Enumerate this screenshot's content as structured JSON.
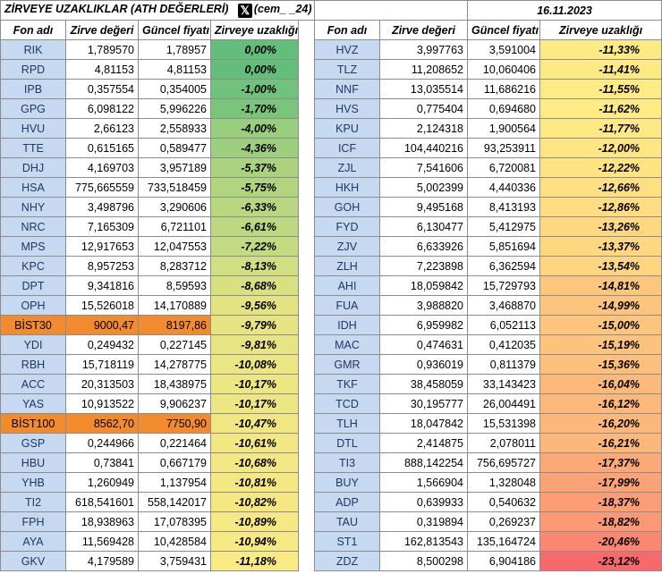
{
  "title": {
    "main": "ZİRVEYE UZAKLIKLAR (ATH DEĞERLERİ)",
    "logo_glyph": "𝕏",
    "handle": "(cem_ _24)",
    "date": "16.11.2023"
  },
  "headers": [
    "Fon adı",
    "Zirve değeri",
    "Güncel fiyatı",
    "Zirveye uzaklığı"
  ],
  "left": [
    {
      "code": "RIK",
      "peak": "1,789570",
      "current": "1,78957",
      "dist": "0,00%",
      "pct": 0.0,
      "bist": false
    },
    {
      "code": "RPD",
      "peak": "4,81153",
      "current": "4,81153",
      "dist": "0,00%",
      "pct": 0.0,
      "bist": false
    },
    {
      "code": "IPB",
      "peak": "0,357554",
      "current": "0,354005",
      "dist": "-1,00%",
      "pct": -1.0,
      "bist": false
    },
    {
      "code": "GPG",
      "peak": "6,098122",
      "current": "5,996226",
      "dist": "-1,70%",
      "pct": -1.7,
      "bist": false
    },
    {
      "code": "HVU",
      "peak": "2,66123",
      "current": "2,558933",
      "dist": "-4,00%",
      "pct": -4.0,
      "bist": false
    },
    {
      "code": "TTE",
      "peak": "0,615165",
      "current": "0,589477",
      "dist": "-4,36%",
      "pct": -4.36,
      "bist": false
    },
    {
      "code": "DHJ",
      "peak": "4,169703",
      "current": "3,957189",
      "dist": "-5,37%",
      "pct": -5.37,
      "bist": false
    },
    {
      "code": "HSA",
      "peak": "775,665559",
      "current": "733,518459",
      "dist": "-5,75%",
      "pct": -5.75,
      "bist": false
    },
    {
      "code": "NHY",
      "peak": "3,498796",
      "current": "3,290606",
      "dist": "-6,33%",
      "pct": -6.33,
      "bist": false
    },
    {
      "code": "NRC",
      "peak": "7,165309",
      "current": "6,721101",
      "dist": "-6,61%",
      "pct": -6.61,
      "bist": false
    },
    {
      "code": "MPS",
      "peak": "12,917653",
      "current": "12,047553",
      "dist": "-7,22%",
      "pct": -7.22,
      "bist": false
    },
    {
      "code": "KPC",
      "peak": "8,957253",
      "current": "8,283712",
      "dist": "-8,13%",
      "pct": -8.13,
      "bist": false
    },
    {
      "code": "DPT",
      "peak": "9,341816",
      "current": "8,59593",
      "dist": "-8,68%",
      "pct": -8.68,
      "bist": false
    },
    {
      "code": "OPH",
      "peak": "15,526018",
      "current": "14,170889",
      "dist": "-9,56%",
      "pct": -9.56,
      "bist": false
    },
    {
      "code": "BİST30",
      "peak": "9000,47",
      "current": "8197,86",
      "dist": "-9,79%",
      "pct": -9.79,
      "bist": true
    },
    {
      "code": "YDI",
      "peak": "0,249432",
      "current": "0,227145",
      "dist": "-9,81%",
      "pct": -9.81,
      "bist": false
    },
    {
      "code": "RBH",
      "peak": "15,718119",
      "current": "14,278775",
      "dist": "-10,08%",
      "pct": -10.08,
      "bist": false
    },
    {
      "code": "ACC",
      "peak": "20,313503",
      "current": "18,438975",
      "dist": "-10,17%",
      "pct": -10.17,
      "bist": false
    },
    {
      "code": "YAS",
      "peak": "10,913522",
      "current": "9,906237",
      "dist": "-10,17%",
      "pct": -10.17,
      "bist": false
    },
    {
      "code": "BİST100",
      "peak": "8562,70",
      "current": "7750,90",
      "dist": "-10,47%",
      "pct": -10.47,
      "bist": true
    },
    {
      "code": "GSP",
      "peak": "0,244966",
      "current": "0,221464",
      "dist": "-10,61%",
      "pct": -10.61,
      "bist": false
    },
    {
      "code": "HBU",
      "peak": "0,73841",
      "current": "0,667179",
      "dist": "-10,68%",
      "pct": -10.68,
      "bist": false
    },
    {
      "code": "YHB",
      "peak": "1,260949",
      "current": "1,137954",
      "dist": "-10,81%",
      "pct": -10.81,
      "bist": false
    },
    {
      "code": "TI2",
      "peak": "618,541601",
      "current": "558,142017",
      "dist": "-10,82%",
      "pct": -10.82,
      "bist": false
    },
    {
      "code": "FPH",
      "peak": "18,938963",
      "current": "17,078395",
      "dist": "-10,89%",
      "pct": -10.89,
      "bist": false
    },
    {
      "code": "AYA",
      "peak": "11,569428",
      "current": "10,428584",
      "dist": "-10,94%",
      "pct": -10.94,
      "bist": false
    },
    {
      "code": "GKV",
      "peak": "4,179589",
      "current": "3,759431",
      "dist": "-11,18%",
      "pct": -11.18,
      "bist": false
    }
  ],
  "right": [
    {
      "code": "HVZ",
      "peak": "3,997763",
      "current": "3,591004",
      "dist": "-11,33%",
      "pct": -11.33,
      "bist": false
    },
    {
      "code": "TLZ",
      "peak": "11,208652",
      "current": "10,060406",
      "dist": "-11,41%",
      "pct": -11.41,
      "bist": false
    },
    {
      "code": "NNF",
      "peak": "13,035514",
      "current": "11,686216",
      "dist": "-11,55%",
      "pct": -11.55,
      "bist": false
    },
    {
      "code": "HVS",
      "peak": "0,775404",
      "current": "0,694680",
      "dist": "-11,62%",
      "pct": -11.62,
      "bist": false
    },
    {
      "code": "KPU",
      "peak": "2,124318",
      "current": "1,900564",
      "dist": "-11,77%",
      "pct": -11.77,
      "bist": false
    },
    {
      "code": "ICF",
      "peak": "104,440216",
      "current": "93,253911",
      "dist": "-12,00%",
      "pct": -12.0,
      "bist": false
    },
    {
      "code": "ZJL",
      "peak": "7,541606",
      "current": "6,720081",
      "dist": "-12,22%",
      "pct": -12.22,
      "bist": false
    },
    {
      "code": "HKH",
      "peak": "5,002399",
      "current": "4,440336",
      "dist": "-12,66%",
      "pct": -12.66,
      "bist": false
    },
    {
      "code": "GOH",
      "peak": "9,495168",
      "current": "8,413193",
      "dist": "-12,86%",
      "pct": -12.86,
      "bist": false
    },
    {
      "code": "FYD",
      "peak": "6,130477",
      "current": "5,412975",
      "dist": "-13,26%",
      "pct": -13.26,
      "bist": false
    },
    {
      "code": "ZJV",
      "peak": "6,633926",
      "current": "5,851694",
      "dist": "-13,37%",
      "pct": -13.37,
      "bist": false
    },
    {
      "code": "ZLH",
      "peak": "7,223898",
      "current": "6,362594",
      "dist": "-13,54%",
      "pct": -13.54,
      "bist": false
    },
    {
      "code": "AHI",
      "peak": "18,059842",
      "current": "15,729793",
      "dist": "-14,81%",
      "pct": -14.81,
      "bist": false
    },
    {
      "code": "FUA",
      "peak": "3,988820",
      "current": "3,468870",
      "dist": "-14,99%",
      "pct": -14.99,
      "bist": false
    },
    {
      "code": "IDH",
      "peak": "6,959982",
      "current": "6,052113",
      "dist": "-15,00%",
      "pct": -15.0,
      "bist": false
    },
    {
      "code": "MAC",
      "peak": "0,474631",
      "current": "0,412035",
      "dist": "-15,19%",
      "pct": -15.19,
      "bist": false
    },
    {
      "code": "GMR",
      "peak": "0,936019",
      "current": "0,811379",
      "dist": "-15,36%",
      "pct": -15.36,
      "bist": false
    },
    {
      "code": "TKF",
      "peak": "38,458059",
      "current": "33,143423",
      "dist": "-16,04%",
      "pct": -16.04,
      "bist": false
    },
    {
      "code": "TCD",
      "peak": "30,195777",
      "current": "26,004491",
      "dist": "-16,12%",
      "pct": -16.12,
      "bist": false
    },
    {
      "code": "TLH",
      "peak": "18,047842",
      "current": "15,531398",
      "dist": "-16,20%",
      "pct": -16.2,
      "bist": false
    },
    {
      "code": "DTL",
      "peak": "2,414875",
      "current": "2,078011",
      "dist": "-16,21%",
      "pct": -16.21,
      "bist": false
    },
    {
      "code": "TI3",
      "peak": "888,142254",
      "current": "756,695727",
      "dist": "-17,37%",
      "pct": -17.37,
      "bist": false
    },
    {
      "code": "BUY",
      "peak": "1,566904",
      "current": "1,328048",
      "dist": "-17,99%",
      "pct": -17.99,
      "bist": false
    },
    {
      "code": "ADP",
      "peak": "0,639933",
      "current": "0,540632",
      "dist": "-18,37%",
      "pct": -18.37,
      "bist": false
    },
    {
      "code": "TAU",
      "peak": "0,319894",
      "current": "0,269237",
      "dist": "-18,82%",
      "pct": -18.82,
      "bist": false
    },
    {
      "code": "ST1",
      "peak": "162,813543",
      "current": "135,164724",
      "dist": "-20,46%",
      "pct": -20.46,
      "bist": false
    },
    {
      "code": "ZDZ",
      "peak": "8,500298",
      "current": "6,904186",
      "dist": "-23,12%",
      "pct": -23.12,
      "bist": false
    }
  ],
  "colors": {
    "code_bg": "#c6d9f1",
    "bist_bg": "#f28a2e",
    "scale_green": "#63be7b",
    "scale_yellow": "#ffeb84",
    "scale_red": "#f8696b"
  }
}
